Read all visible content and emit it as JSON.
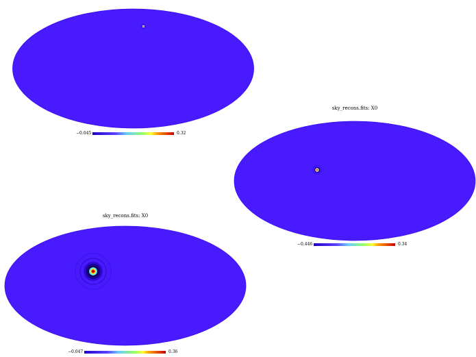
{
  "maps": [
    {
      "title": "",
      "colorbar": {
        "min": "−0.045",
        "max": "0.32"
      },
      "source": {
        "lon_deg": -10,
        "lat_deg": 30,
        "extent": "small"
      }
    },
    {
      "title": "sky_recons.fits: X0",
      "colorbar": {
        "min": "−0.446",
        "max": "0.34"
      },
      "source": {
        "lon_deg": 55,
        "lat_deg": 15,
        "extent": "compact"
      }
    },
    {
      "title": "sky_recons.fits: X0",
      "colorbar": {
        "min": "−0.047",
        "max": "0.36"
      },
      "source": {
        "lon_deg": 55,
        "lat_deg": 5,
        "extent": "extended-rings"
      }
    }
  ],
  "colors": {
    "sky": "#4a1aff",
    "sky_edge": "#3a10f0",
    "colormap": [
      "#1e00c8",
      "#5a40ff",
      "#66ccff",
      "#99ff66",
      "#ffff33",
      "#ff9900",
      "#cc0000"
    ]
  }
}
